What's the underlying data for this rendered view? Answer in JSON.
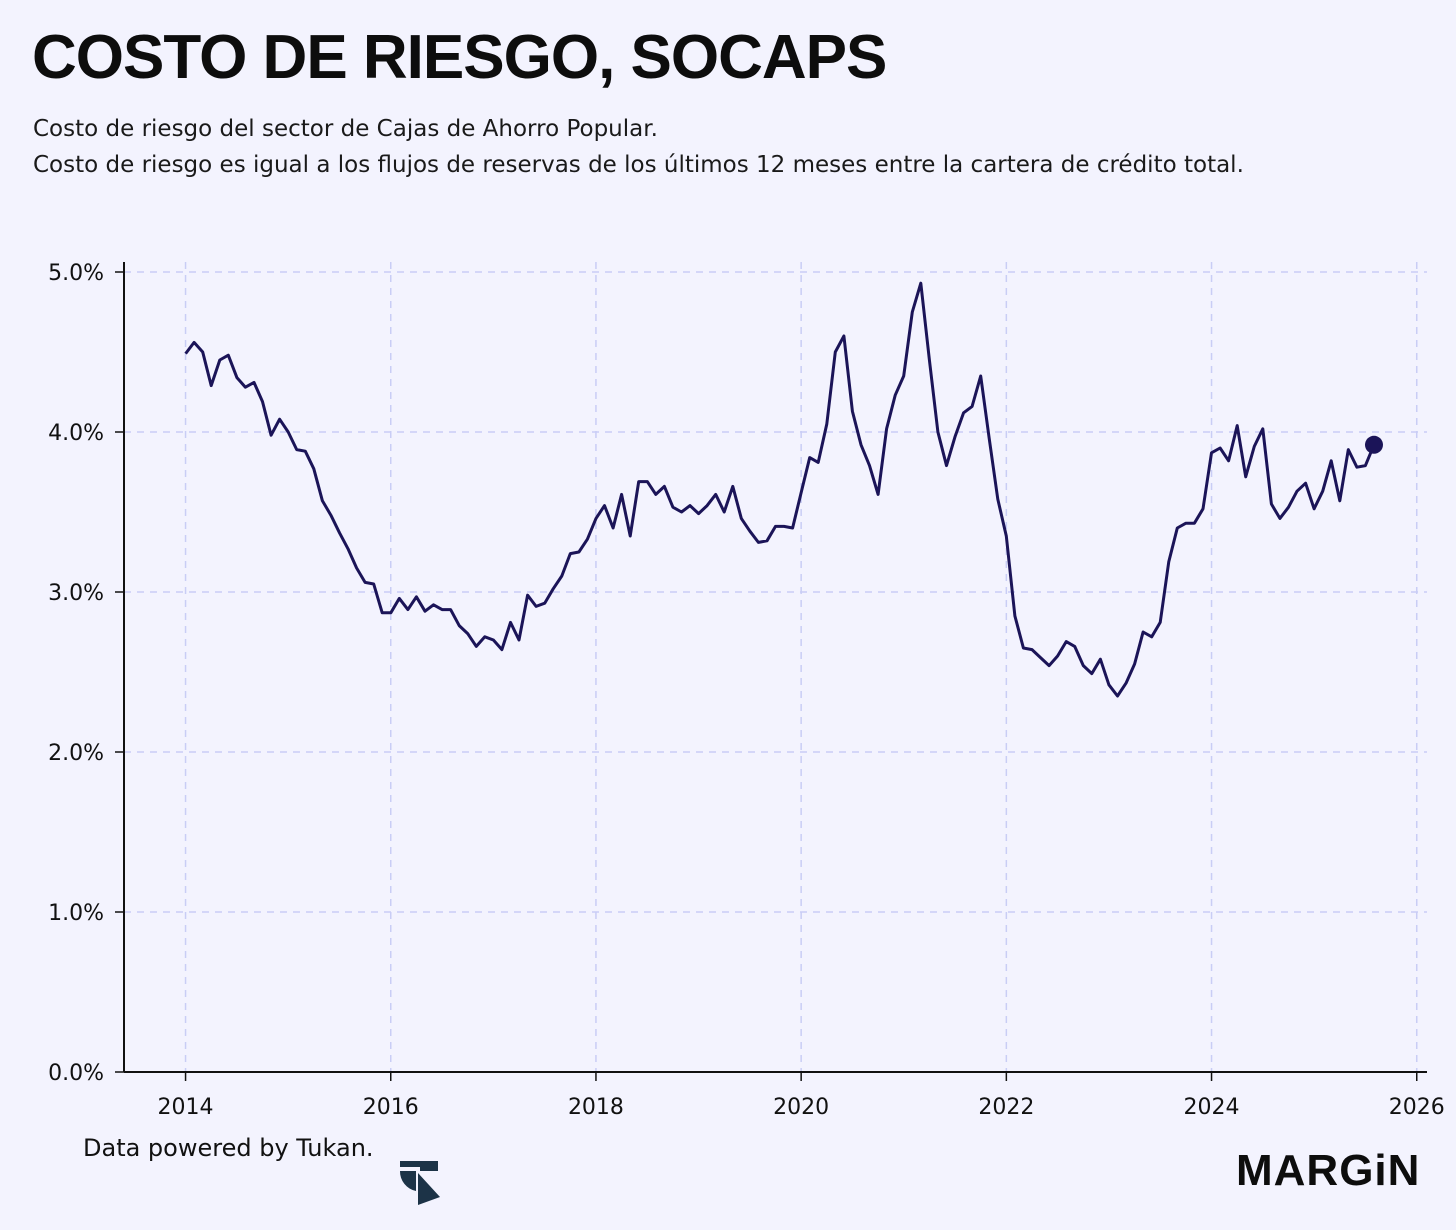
{
  "title": "COSTO DE RIESGO, SOCAPS",
  "subtitle_lines": [
    "Costo de riesgo del sector de Cajas de Ahorro Popular.",
    "Costo de riesgo es igual a los flujos de reservas de los últimos 12 meses entre la cartera de crédito total."
  ],
  "footer": {
    "source_text": "Data powered by Tukan.",
    "tukan_logo_icon": "tukan-logo-icon",
    "brand": "MARGiN"
  },
  "colors": {
    "background": "#f3f3fe",
    "line": "#1b1458",
    "grid": "#c9cdf5",
    "axis": "#111111"
  },
  "chart_data": {
    "type": "line",
    "title": "",
    "xlabel": "",
    "ylabel": "",
    "xlim": [
      2013.4,
      2026.1
    ],
    "ylim": [
      0,
      5
    ],
    "x_ticks": [
      2014,
      2016,
      2018,
      2020,
      2022,
      2024,
      2026
    ],
    "x_tick_labels": [
      "2014",
      "2016",
      "2018",
      "2020",
      "2022",
      "2024",
      "2026"
    ],
    "y_ticks": [
      0,
      1,
      2,
      3,
      4,
      5
    ],
    "y_tick_labels": [
      "0.0%",
      "1.0%",
      "2.0%",
      "3.0%",
      "4.0%",
      "5.0%"
    ],
    "grid": true,
    "grid_style": "dashed",
    "legend": "none",
    "end_marker": true,
    "series": [
      {
        "x_start": "2014-01",
        "frequency": "monthly",
        "values": [
          4.49,
          4.56,
          4.5,
          4.29,
          4.45,
          4.48,
          4.34,
          4.28,
          4.31,
          4.19,
          3.98,
          4.08,
          4.0,
          3.89,
          3.88,
          3.77,
          3.57,
          3.48,
          3.37,
          3.27,
          3.15,
          3.06,
          3.05,
          2.87,
          2.87,
          2.96,
          2.89,
          2.97,
          2.88,
          2.92,
          2.89,
          2.89,
          2.79,
          2.74,
          2.66,
          2.72,
          2.7,
          2.64,
          2.81,
          2.7,
          2.98,
          2.91,
          2.93,
          3.02,
          3.1,
          3.24,
          3.25,
          3.33,
          3.46,
          3.54,
          3.4,
          3.61,
          3.35,
          3.69,
          3.69,
          3.61,
          3.66,
          3.53,
          3.5,
          3.54,
          3.49,
          3.54,
          3.61,
          3.5,
          3.66,
          3.46,
          3.38,
          3.31,
          3.32,
          3.41,
          3.41,
          3.4,
          3.62,
          3.84,
          3.81,
          4.05,
          4.5,
          4.6,
          4.13,
          3.92,
          3.79,
          3.61,
          4.02,
          4.23,
          4.35,
          4.75,
          4.93,
          4.45,
          4.0,
          3.79,
          3.97,
          4.12,
          4.16,
          4.35,
          3.96,
          3.58,
          3.35,
          2.85,
          2.65,
          2.64,
          2.59,
          2.54,
          2.6,
          2.69,
          2.66,
          2.54,
          2.49,
          2.58,
          2.42,
          2.35,
          2.43,
          2.55,
          2.75,
          2.72,
          2.81,
          3.19,
          3.4,
          3.43,
          3.43,
          3.52,
          3.87,
          3.9,
          3.82,
          4.04,
          3.72,
          3.91,
          4.02,
          3.55,
          3.46,
          3.53,
          3.63,
          3.68,
          3.52,
          3.63,
          3.82,
          3.57,
          3.89,
          3.78,
          3.79,
          3.92
        ]
      }
    ]
  }
}
